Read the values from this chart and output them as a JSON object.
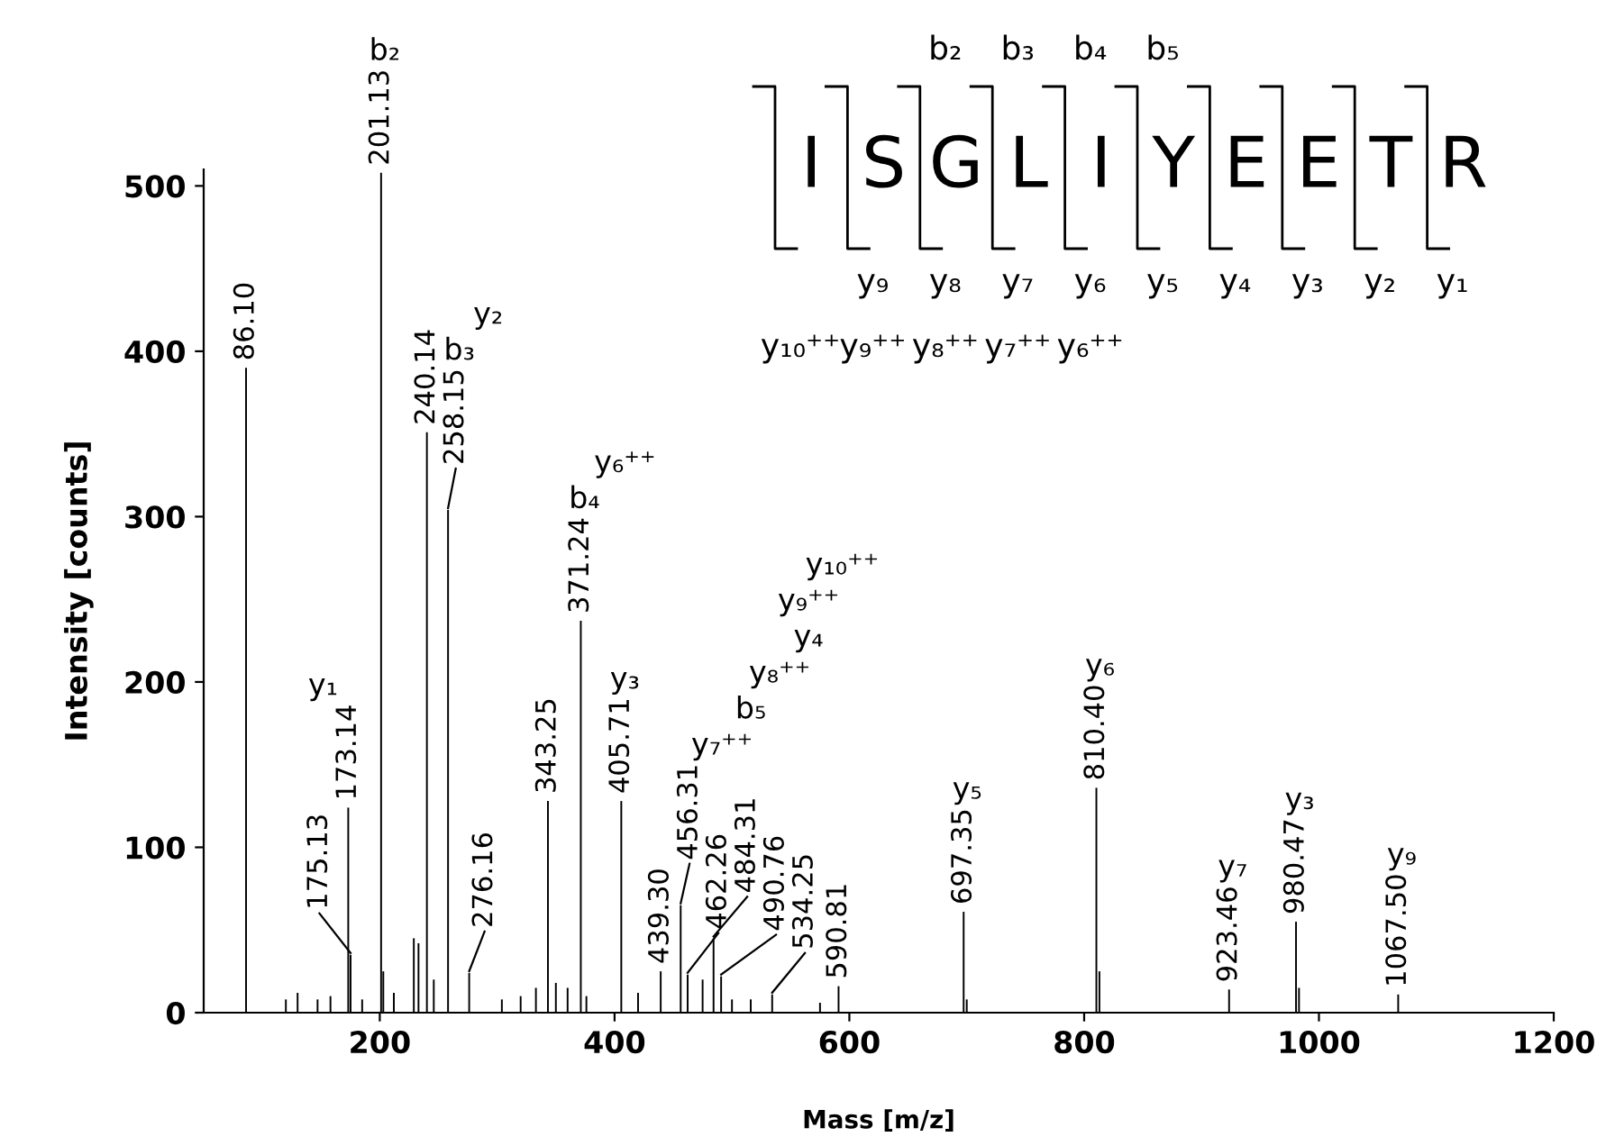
{
  "chart_data": {
    "type": "bar",
    "xlabel": "Mass [m/z]",
    "ylabel": "Intensity [counts]",
    "x": [
      86.1,
      120,
      130,
      147,
      158,
      173.14,
      175.13,
      185,
      201.13,
      203,
      212,
      229,
      233,
      240.14,
      246,
      258.15,
      276.16,
      304,
      320,
      333,
      343.25,
      350,
      360,
      371.24,
      376,
      405.71,
      420,
      439.3,
      456.31,
      462.26,
      475,
      484.31,
      490.76,
      500,
      516,
      534.25,
      575,
      590.81,
      697.35,
      700,
      810.4,
      813,
      923.46,
      980.47,
      983,
      1067.5
    ],
    "values": [
      390,
      8,
      12,
      8,
      10,
      124,
      35,
      8,
      508,
      25,
      12,
      45,
      42,
      351,
      20,
      304,
      24,
      8,
      10,
      15,
      128,
      18,
      15,
      237,
      10,
      128,
      12,
      25,
      65,
      23,
      20,
      45,
      22,
      8,
      8,
      11,
      6,
      16,
      61,
      8,
      136,
      25,
      14,
      55,
      15,
      11
    ],
    "color": "#000000",
    "xlim": [
      50,
      1200
    ],
    "ylim": [
      0,
      510
    ],
    "xticks": [
      200,
      400,
      600,
      800,
      1000,
      1200
    ],
    "yticks": [
      0,
      100,
      200,
      300,
      400,
      500
    ],
    "annotations": [
      "I S G L I Y E E T R",
      "b₂ b₃ b₄ b₅",
      "y₉ y₈ y₇ y₆ y₅ y₄ y₃ y₂ y₁",
      "y₁₀⁺⁺ y₉⁺⁺ y₈⁺⁺ y₇⁺⁺ y₆⁺⁺",
      {
        "text": "86.10",
        "x": 86.1,
        "y": 390
      },
      {
        "text": "173.14",
        "x": 173.14,
        "y": 124
      },
      {
        "text": "175.13",
        "x": 175.13,
        "y": 35
      },
      "y₁",
      {
        "text": "201.13",
        "x": 201.13,
        "y": 508
      },
      "b₂",
      {
        "text": "240.14",
        "x": 240.14,
        "y": 351
      },
      {
        "text": "258.15",
        "x": 258.15,
        "y": 304
      },
      "b₃",
      {
        "text": "276.16",
        "x": 276.16,
        "y": 24
      },
      "y₂",
      {
        "text": "343.25",
        "x": 343.25,
        "y": 128
      },
      {
        "text": "371.24",
        "x": 371.24,
        "y": 237
      },
      "b₄",
      {
        "text": "405.71",
        "x": 405.71,
        "y": 128
      },
      "y₃",
      "y₆⁺⁺",
      {
        "text": "439.30",
        "x": 439.3,
        "y": 25
      },
      {
        "text": "456.31",
        "x": 456.31,
        "y": 65
      },
      {
        "text": "462.26",
        "x": 462.26,
        "y": 23
      },
      "y₇⁺⁺",
      {
        "text": "484.31",
        "x": 484.31,
        "y": 45
      },
      "b₅",
      {
        "text": "490.76",
        "x": 490.76,
        "y": 22
      },
      "y₈⁺⁺",
      {
        "text": "534.25",
        "x": 534.25,
        "y": 11
      },
      "y₄",
      "y₉⁺⁺",
      {
        "text": "590.81",
        "x": 590.81,
        "y": 16
      },
      "y₁₀⁺⁺",
      {
        "text": "697.35",
        "x": 697.35,
        "y": 61
      },
      "y₅",
      {
        "text": "810.40",
        "x": 810.4,
        "y": 136
      },
      "y₆",
      {
        "text": "923.46",
        "x": 923.46,
        "y": 14
      },
      "y₇",
      {
        "text": "980.47",
        "x": 980.47,
        "y": 55
      },
      "y₃",
      {
        "text": "1067.50",
        "x": 1067.5,
        "y": 11
      },
      "y₉"
    ]
  }
}
